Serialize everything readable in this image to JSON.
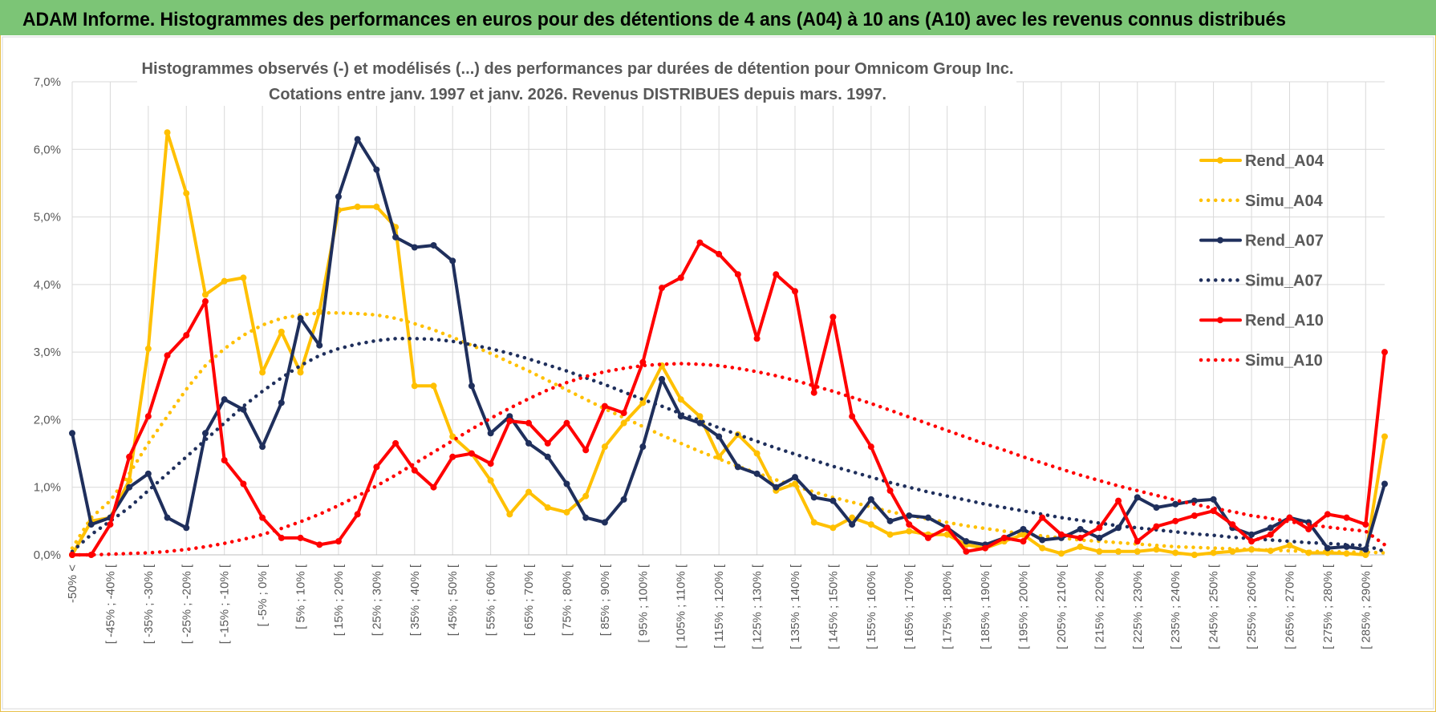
{
  "title_bar": "ADAM Informe. Histogrammes des performances en euros pour des détentions de 4 ans (A04) à 10 ans (A10) avec les revenus connus distribués",
  "chart_data": {
    "type": "line",
    "title": "Histogrammes observés (-) et modélisés (...) des performances par durées de détention pour Omnicom Group Inc.",
    "subtitle": "Cotations entre janv. 1997 et janv. 2026. Revenus DISTRIBUES depuis mars. 1997.",
    "categories": [
      "-50% <",
      null,
      "[ -45% ; -40% [",
      null,
      "[ -35% ; -30% [",
      null,
      "[ -25% ; -20% [",
      null,
      "[ -15% ; -10% [",
      null,
      "[ -5% ; 0% [",
      null,
      "[ 5% ; 10% [",
      null,
      "[ 15% ; 20% [",
      null,
      "[ 25% ; 30% [",
      null,
      "[ 35% ; 40% [",
      null,
      "[ 45% ; 50% [",
      null,
      "[ 55% ; 60% [",
      null,
      "[ 65% ; 70% [",
      null,
      "[ 75% ; 80% [",
      null,
      "[ 85% ; 90% [",
      null,
      "[ 95% ; 100% [",
      null,
      "[ 105% ; 110% [",
      null,
      "[ 115% ; 120% [",
      null,
      "[ 125% ; 130% [",
      null,
      "[ 135% ; 140% [",
      null,
      "[ 145% ; 150% [",
      null,
      "[ 155% ; 160% [",
      null,
      "[ 165% ; 170% [",
      null,
      "[ 175% ; 180% [",
      null,
      "[ 185% ; 190% [",
      null,
      "[ 195% ; 200% [",
      null,
      "[ 205% ; 210% [",
      null,
      "[ 215% ; 220% [",
      null,
      "[ 225% ; 230% [",
      null,
      "[ 235% ; 240% [",
      null,
      "[ 245% ; 250% [",
      null,
      "[ 255% ; 260% [",
      null,
      "[ 265% ; 270% [",
      null,
      "[ 275% ; 280% [",
      null,
      "[ 285% ; 290% [",
      null
    ],
    "series": [
      {
        "name": "Rend_A04",
        "color": "#ffc000",
        "style": "solid",
        "markers": true,
        "values": [
          0,
          0.5,
          0.55,
          1.1,
          3.05,
          6.25,
          5.35,
          3.85,
          4.05,
          4.1,
          2.7,
          3.3,
          2.7,
          3.6,
          5.1,
          5.15,
          5.15,
          4.85,
          2.5,
          2.5,
          1.75,
          1.5,
          1.1,
          0.6,
          0.93,
          0.7,
          0.63,
          0.87,
          1.6,
          1.95,
          2.25,
          2.8,
          2.3,
          2.05,
          1.45,
          1.78,
          1.5,
          0.95,
          1.05,
          0.48,
          0.4,
          0.55,
          0.45,
          0.3,
          0.35,
          0.3,
          0.3,
          0.15,
          0.1,
          0.2,
          0.3,
          0.1,
          0.02,
          0.12,
          0.05,
          0.05,
          0.05,
          0.08,
          0.03,
          0,
          0.03,
          0.05,
          0.08,
          0.06,
          0.14,
          0.03,
          0.03,
          0.02,
          0,
          1.75
        ]
      },
      {
        "name": "Simu_A04",
        "color": "#ffc000",
        "style": "dotted",
        "markers": false,
        "values": [
          0.1,
          0.55,
          0.8,
          1.2,
          1.65,
          2.05,
          2.45,
          2.8,
          3.05,
          3.25,
          3.4,
          3.5,
          3.55,
          3.58,
          3.58,
          3.57,
          3.55,
          3.5,
          3.42,
          3.33,
          3.22,
          3.1,
          2.98,
          2.85,
          2.72,
          2.58,
          2.44,
          2.3,
          2.16,
          2.03,
          1.9,
          1.77,
          1.65,
          1.53,
          1.42,
          1.31,
          1.21,
          1.11,
          1.02,
          0.93,
          0.85,
          0.78,
          0.71,
          0.64,
          0.58,
          0.53,
          0.48,
          0.43,
          0.39,
          0.35,
          0.31,
          0.28,
          0.25,
          0.22,
          0.2,
          0.18,
          0.16,
          0.14,
          0.12,
          0.11,
          0.1,
          0.09,
          0.08,
          0.07,
          0.06,
          0.05,
          0.05,
          0.04,
          0.04,
          0.03
        ]
      },
      {
        "name": "Rend_A07",
        "color": "#1f2f5c",
        "style": "solid",
        "markers": true,
        "values": [
          1.8,
          0.45,
          0.55,
          1.0,
          1.2,
          0.55,
          0.4,
          1.8,
          2.3,
          2.15,
          1.6,
          2.25,
          3.5,
          3.1,
          5.3,
          6.15,
          5.7,
          4.7,
          4.55,
          4.58,
          4.35,
          2.5,
          1.8,
          2.05,
          1.65,
          1.45,
          1.05,
          0.55,
          0.48,
          0.82,
          1.6,
          2.6,
          2.05,
          1.95,
          1.75,
          1.3,
          1.2,
          1.0,
          1.15,
          0.85,
          0.8,
          0.45,
          0.82,
          0.5,
          0.58,
          0.55,
          0.4,
          0.2,
          0.15,
          0.25,
          0.38,
          0.22,
          0.25,
          0.38,
          0.25,
          0.4,
          0.85,
          0.7,
          0.75,
          0.8,
          0.82,
          0.4,
          0.3,
          0.4,
          0.55,
          0.48,
          0.1,
          0.12,
          0.08,
          1.05
        ]
      },
      {
        "name": "Simu_A07",
        "color": "#1f2f5c",
        "style": "dotted",
        "markers": false,
        "values": [
          0.05,
          0.3,
          0.5,
          0.7,
          0.95,
          1.2,
          1.45,
          1.7,
          1.95,
          2.2,
          2.42,
          2.62,
          2.8,
          2.95,
          3.05,
          3.12,
          3.17,
          3.2,
          3.2,
          3.19,
          3.16,
          3.11,
          3.05,
          2.98,
          2.9,
          2.81,
          2.72,
          2.62,
          2.52,
          2.41,
          2.3,
          2.2,
          2.09,
          1.99,
          1.88,
          1.78,
          1.68,
          1.58,
          1.49,
          1.4,
          1.31,
          1.23,
          1.15,
          1.07,
          1.0,
          0.93,
          0.87,
          0.81,
          0.75,
          0.7,
          0.65,
          0.6,
          0.55,
          0.51,
          0.47,
          0.43,
          0.4,
          0.37,
          0.34,
          0.31,
          0.29,
          0.26,
          0.24,
          0.22,
          0.2,
          0.18,
          0.17,
          0.15,
          0.14,
          0.05
        ]
      },
      {
        "name": "Rend_A10",
        "color": "#ff0000",
        "style": "solid",
        "markers": true,
        "values": [
          0,
          0,
          0.45,
          1.45,
          2.05,
          2.95,
          3.25,
          3.75,
          1.4,
          1.05,
          0.55,
          0.25,
          0.25,
          0.15,
          0.2,
          0.6,
          1.3,
          1.65,
          1.25,
          1.0,
          1.45,
          1.5,
          1.35,
          1.98,
          1.95,
          1.65,
          1.95,
          1.55,
          2.2,
          2.1,
          2.85,
          3.95,
          4.1,
          4.62,
          4.45,
          4.15,
          3.2,
          4.15,
          3.9,
          2.4,
          3.52,
          2.05,
          1.6,
          0.95,
          0.45,
          0.25,
          0.4,
          0.05,
          0.1,
          0.25,
          0.2,
          0.55,
          0.3,
          0.25,
          0.4,
          0.8,
          0.2,
          0.42,
          0.5,
          0.58,
          0.65,
          0.45,
          0.2,
          0.3,
          0.55,
          0.38,
          0.6,
          0.55,
          0.45,
          3.0
        ]
      },
      {
        "name": "Simu_A10",
        "color": "#ff0000",
        "style": "dotted",
        "markers": false,
        "values": [
          0,
          0,
          0.01,
          0.02,
          0.03,
          0.05,
          0.08,
          0.12,
          0.17,
          0.23,
          0.3,
          0.39,
          0.49,
          0.6,
          0.73,
          0.87,
          1.02,
          1.18,
          1.35,
          1.52,
          1.69,
          1.86,
          2.02,
          2.17,
          2.31,
          2.44,
          2.55,
          2.64,
          2.71,
          2.76,
          2.8,
          2.82,
          2.83,
          2.82,
          2.8,
          2.76,
          2.71,
          2.65,
          2.58,
          2.5,
          2.42,
          2.33,
          2.24,
          2.14,
          2.04,
          1.94,
          1.84,
          1.74,
          1.64,
          1.55,
          1.45,
          1.36,
          1.27,
          1.18,
          1.1,
          1.02,
          0.95,
          0.88,
          0.81,
          0.75,
          0.69,
          0.64,
          0.58,
          0.54,
          0.49,
          0.45,
          0.41,
          0.38,
          0.35,
          0.15
        ]
      }
    ],
    "ylim": [
      0,
      7
    ],
    "yticks": [
      {
        "value": 0,
        "label": "0,0%"
      },
      {
        "value": 1,
        "label": "1,0%"
      },
      {
        "value": 2,
        "label": "2,0%"
      },
      {
        "value": 3,
        "label": "3,0%"
      },
      {
        "value": 4,
        "label": "4,0%"
      },
      {
        "value": 5,
        "label": "5,0%"
      },
      {
        "value": 6,
        "label": "6,0%"
      },
      {
        "value": 7,
        "label": "7,0%"
      }
    ],
    "grid": true,
    "legend": "right"
  }
}
